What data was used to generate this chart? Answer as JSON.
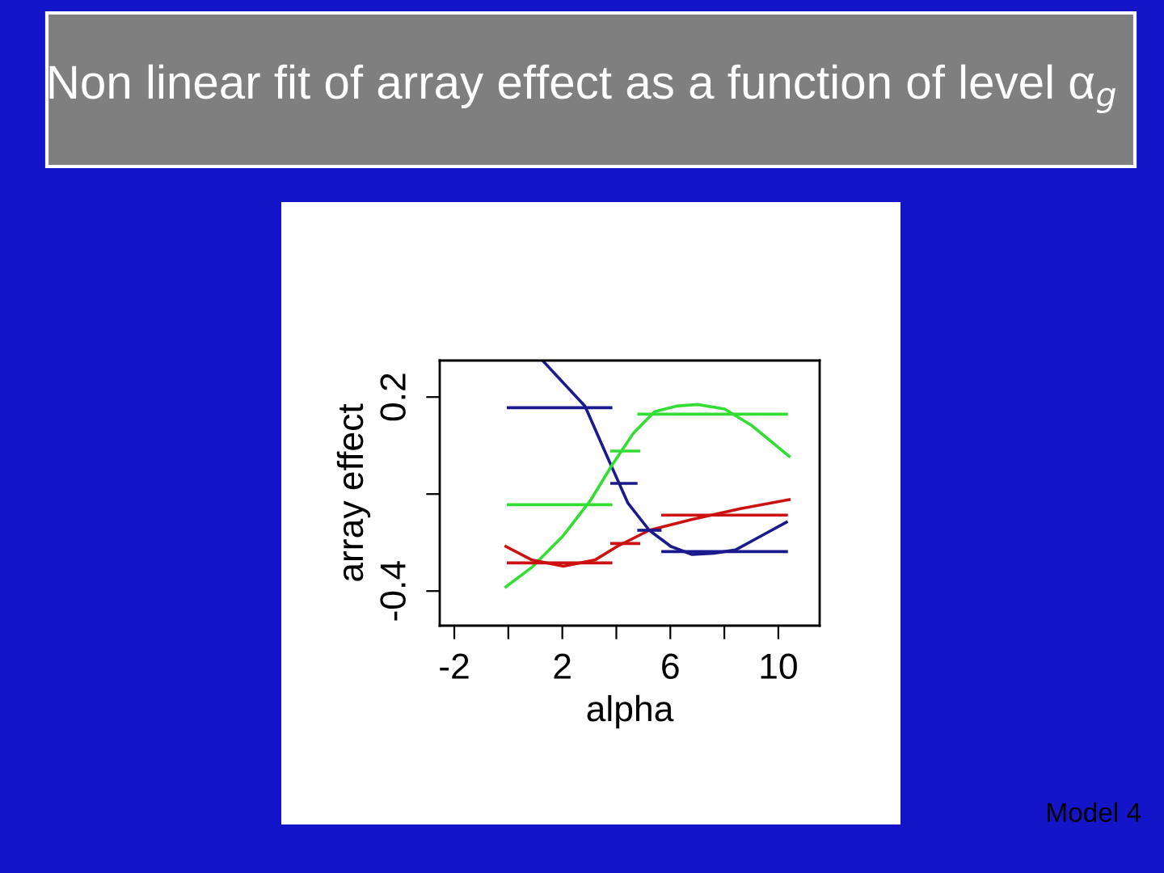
{
  "chart_data": {
    "type": "line",
    "title": "Non linear fit of array effect as a function of level α$_{g}$",
    "xlabel": "alpha",
    "ylabel": "array effect",
    "annotations": [
      "Model 4"
    ],
    "xlim": [
      -2.54,
      11.53
    ],
    "ylim": [
      -0.507,
      0.313
    ],
    "xticks": [
      -2,
      {
        "value": 0,
        "label": null
      },
      2,
      {
        "value": 4,
        "label": null
      },
      6,
      {
        "value": 8,
        "label": null
      },
      10
    ],
    "yticks": [
      {
        "value": -0.4,
        "label": "-0.4"
      },
      {
        "value": -0.1,
        "label": null
      },
      {
        "value": 0.2,
        "label": "0.2"
      }
    ],
    "grid": false,
    "legend": false,
    "marker": "none",
    "line_style": "solid",
    "series": [
      {
        "color": "#1a1a8c",
        "x": [
          1.3,
          2.84,
          3.63,
          4.43,
          5.22,
          6.02,
          6.81,
          7.61,
          8.41,
          9.2,
          10.3
        ],
        "values": [
          0.31,
          0.172,
          0.022,
          -0.128,
          -0.212,
          -0.262,
          -0.287,
          -0.283,
          -0.273,
          -0.237,
          -0.187
        ]
      },
      {
        "color": "#33dd33",
        "x": [
          -0.09,
          0.85,
          2.04,
          3.04,
          3.83,
          4.63,
          5.42,
          6.22,
          7.01,
          8.01,
          9.0,
          10.4
        ],
        "values": [
          -0.387,
          -0.328,
          -0.228,
          -0.12,
          -0.012,
          0.088,
          0.155,
          0.172,
          0.177,
          0.163,
          0.113,
          0.017
        ]
      },
      {
        "color": "#cc1111",
        "x": [
          -0.09,
          0.85,
          2.04,
          3.23,
          4.03,
          5.22,
          6.81,
          8.6,
          10.4
        ],
        "values": [
          -0.262,
          -0.303,
          -0.323,
          -0.303,
          -0.262,
          -0.212,
          -0.178,
          -0.145,
          -0.117
        ]
      },
      {
        "color": "#1a1a8c",
        "x": [
          0,
          3.8
        ],
        "values": [
          0.167,
          0.167
        ]
      },
      {
        "color": "#1a1a8c",
        "x": [
          3.83,
          4.73
        ],
        "values": [
          -0.067,
          -0.067
        ]
      },
      {
        "color": "#1a1a8c",
        "x": [
          4.83,
          5.62
        ],
        "values": [
          -0.212,
          -0.212
        ]
      },
      {
        "color": "#1a1a8c",
        "x": [
          5.72,
          10.3
        ],
        "values": [
          -0.278,
          -0.278
        ]
      },
      {
        "color": "#33dd33",
        "x": [
          0,
          3.8
        ],
        "values": [
          -0.133,
          -0.133
        ]
      },
      {
        "color": "#33dd33",
        "x": [
          3.83,
          4.83
        ],
        "values": [
          0.033,
          0.033
        ]
      },
      {
        "color": "#33dd33",
        "x": [
          4.83,
          10.3
        ],
        "values": [
          0.147,
          0.147
        ]
      },
      {
        "color": "#cc1111",
        "x": [
          0,
          3.8
        ],
        "values": [
          -0.313,
          -0.313
        ]
      },
      {
        "color": "#cc1111",
        "x": [
          3.83,
          4.83
        ],
        "values": [
          -0.253,
          -0.253
        ]
      },
      {
        "color": "#cc1111",
        "x": [
          5.72,
          10.3
        ],
        "values": [
          -0.165,
          -0.165
        ]
      }
    ]
  }
}
